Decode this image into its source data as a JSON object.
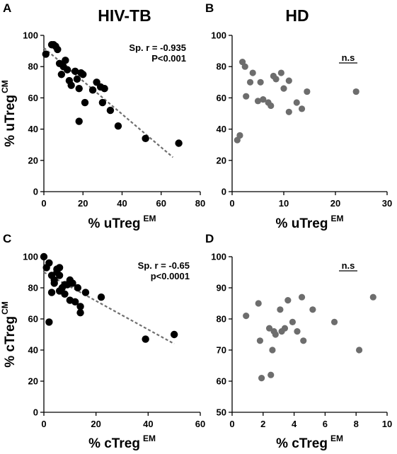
{
  "column_titles": {
    "left": "HIV-TB",
    "right": "HD"
  },
  "colors": {
    "dots_hivtb": "#000000",
    "dots_hd": "#6d6d6d",
    "trend": "#6e6e6e",
    "axis": "#000000"
  },
  "chart_data": [
    {
      "panel": "A",
      "type": "scatter",
      "xlabel": "% uTreg",
      "xlabel_sup": "EM",
      "ylabel": "% uTreg",
      "ylabel_sup": "CM",
      "xlim": [
        0,
        80
      ],
      "ylim": [
        0,
        100
      ],
      "xticks": [
        "0",
        "20",
        "40",
        "60",
        "80"
      ],
      "yticks": [
        "0",
        "20",
        "40",
        "60",
        "80",
        "100"
      ],
      "annotation": [
        "Sp. r = -0.935",
        "P<0.001"
      ],
      "trend_line": {
        "x": [
          0,
          66
        ],
        "y": [
          92,
          22
        ]
      },
      "points": [
        [
          1,
          88
        ],
        [
          4,
          94
        ],
        [
          5,
          94
        ],
        [
          6,
          93
        ],
        [
          7,
          91
        ],
        [
          8,
          82
        ],
        [
          9,
          75
        ],
        [
          10,
          80
        ],
        [
          11,
          84
        ],
        [
          12,
          78
        ],
        [
          13,
          71
        ],
        [
          14,
          68
        ],
        [
          16,
          77
        ],
        [
          17,
          72
        ],
        [
          18,
          66
        ],
        [
          18,
          45
        ],
        [
          19,
          76
        ],
        [
          20,
          75
        ],
        [
          21,
          57
        ],
        [
          25,
          65
        ],
        [
          27,
          70
        ],
        [
          29,
          67
        ],
        [
          31,
          66
        ],
        [
          30,
          57
        ],
        [
          34,
          52
        ],
        [
          38,
          42
        ],
        [
          52,
          34
        ],
        [
          69,
          31
        ]
      ]
    },
    {
      "panel": "B",
      "type": "scatter",
      "xlabel": "% uTreg",
      "xlabel_sup": "EM",
      "ylabel": "",
      "ylabel_sup": "",
      "xlim": [
        0,
        30
      ],
      "ylim": [
        0,
        100
      ],
      "xticks": [
        "0",
        "10",
        "20",
        "30"
      ],
      "yticks": [
        "0",
        "20",
        "40",
        "60",
        "80",
        "100"
      ],
      "annotation": [
        "n.s"
      ],
      "trend_line": null,
      "points": [
        [
          1,
          33
        ],
        [
          1.5,
          36
        ],
        [
          2,
          83
        ],
        [
          2.5,
          80
        ],
        [
          2.7,
          61
        ],
        [
          3.5,
          70
        ],
        [
          4,
          76
        ],
        [
          5,
          58
        ],
        [
          5.5,
          70
        ],
        [
          6,
          59
        ],
        [
          7,
          57
        ],
        [
          7.5,
          55
        ],
        [
          8,
          74
        ],
        [
          8.5,
          72
        ],
        [
          9.5,
          76
        ],
        [
          10,
          66
        ],
        [
          11,
          71
        ],
        [
          11,
          51
        ],
        [
          12.5,
          57
        ],
        [
          13.5,
          53
        ],
        [
          14.5,
          64
        ],
        [
          24,
          64
        ]
      ]
    },
    {
      "panel": "C",
      "type": "scatter",
      "xlabel": "% cTreg",
      "xlabel_sup": "EM",
      "ylabel": "% cTreg",
      "ylabel_sup": "CM",
      "xlim": [
        0,
        60
      ],
      "ylim": [
        0,
        100
      ],
      "xticks": [
        "0",
        "20",
        "40",
        "60"
      ],
      "yticks": [
        "0",
        "20",
        "40",
        "60",
        "80",
        "100"
      ],
      "annotation": [
        "Sp. r = -0.65",
        "p<0.0001"
      ],
      "trend_line": {
        "x": [
          0,
          50
        ],
        "y": [
          90,
          44
        ]
      },
      "points": [
        [
          0,
          100
        ],
        [
          1,
          93
        ],
        [
          2,
          96
        ],
        [
          2,
          58
        ],
        [
          3,
          88
        ],
        [
          3,
          77
        ],
        [
          4,
          85
        ],
        [
          4,
          83
        ],
        [
          5,
          92
        ],
        [
          5,
          90
        ],
        [
          6,
          93
        ],
        [
          6,
          88
        ],
        [
          6,
          78
        ],
        [
          7,
          80
        ],
        [
          8,
          76
        ],
        [
          8,
          82
        ],
        [
          9,
          82
        ],
        [
          10,
          85
        ],
        [
          10,
          72
        ],
        [
          11,
          83
        ],
        [
          12,
          71
        ],
        [
          13,
          80
        ],
        [
          14,
          68
        ],
        [
          14,
          64
        ],
        [
          16,
          77
        ],
        [
          22,
          74
        ],
        [
          39,
          47
        ],
        [
          50,
          50
        ]
      ]
    },
    {
      "panel": "D",
      "type": "scatter",
      "xlabel": "% cTreg",
      "xlabel_sup": "EM",
      "ylabel": "",
      "ylabel_sup": "",
      "xlim": [
        0,
        10
      ],
      "ylim": [
        50,
        100
      ],
      "xticks": [
        "0",
        "2",
        "4",
        "6",
        "8",
        "10"
      ],
      "yticks": [
        "50",
        "60",
        "70",
        "80",
        "90",
        "100"
      ],
      "annotation": [
        "n.s"
      ],
      "trend_line": null,
      "points": [
        [
          0.9,
          81
        ],
        [
          1.7,
          85
        ],
        [
          1.8,
          73
        ],
        [
          1.9,
          61
        ],
        [
          2.4,
          77
        ],
        [
          2.5,
          62
        ],
        [
          2.6,
          70
        ],
        [
          2.7,
          76
        ],
        [
          2.8,
          75
        ],
        [
          3.1,
          83
        ],
        [
          3.2,
          76
        ],
        [
          3.4,
          77
        ],
        [
          3.6,
          86
        ],
        [
          3.9,
          79
        ],
        [
          4.2,
          76
        ],
        [
          4.5,
          87
        ],
        [
          4.6,
          73
        ],
        [
          5.2,
          83
        ],
        [
          6.6,
          79
        ],
        [
          8.2,
          70
        ],
        [
          9.1,
          87
        ]
      ]
    }
  ]
}
